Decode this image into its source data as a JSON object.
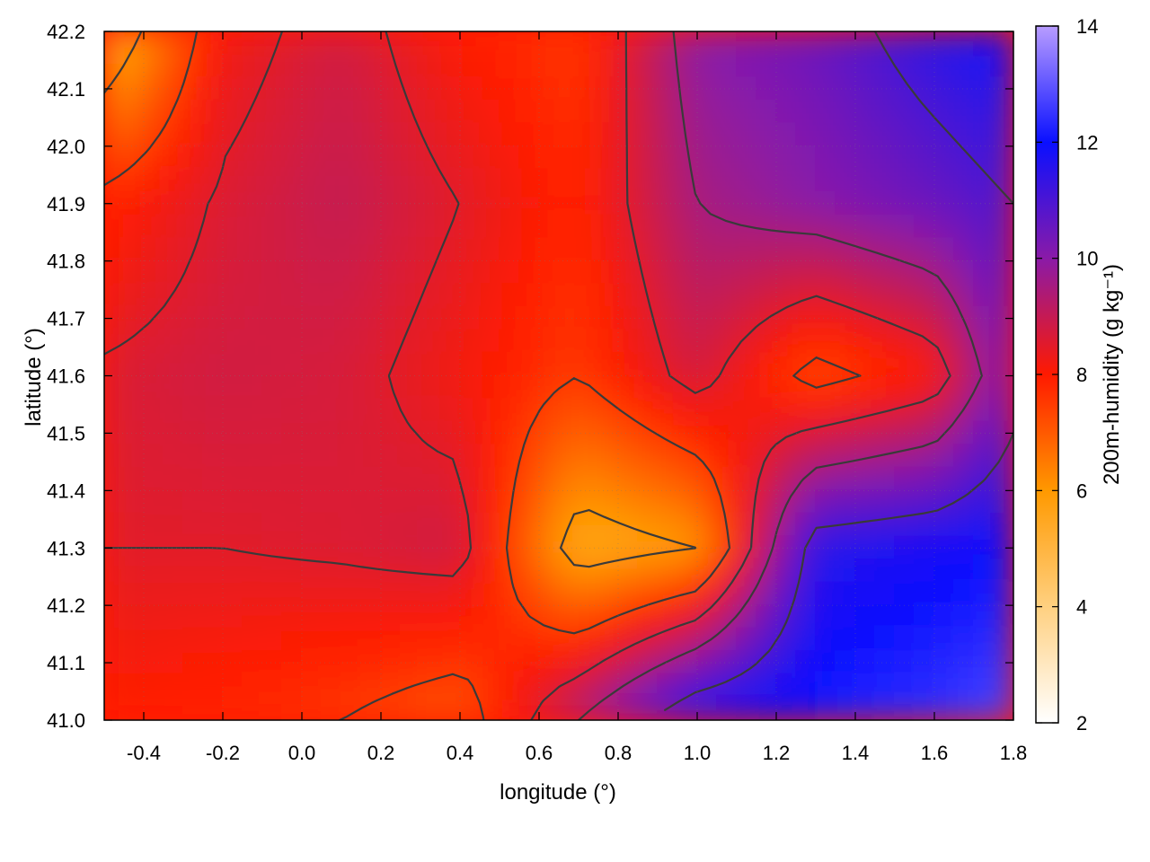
{
  "chart_data": {
    "type": "heatmap",
    "xlabel": "longitude (°)",
    "ylabel": "latitude (°)",
    "colorbar_label": "200m-humidity (g kg⁻¹)",
    "xlim": [
      -0.5,
      1.8
    ],
    "ylim": [
      41.0,
      42.2
    ],
    "zlim": [
      2,
      14
    ],
    "x_ticks": [
      -0.4,
      -0.2,
      0.0,
      0.2,
      0.4,
      0.6,
      0.8,
      1.0,
      1.2,
      1.4,
      1.6,
      1.8
    ],
    "x_tick_labels": [
      "-0.4",
      "-0.2",
      "0.0",
      "0.2",
      "0.4",
      "0.6",
      "0.8",
      "1.0",
      "1.2",
      "1.4",
      "1.6",
      "1.8"
    ],
    "y_ticks": [
      41.0,
      41.1,
      41.2,
      41.3,
      41.4,
      41.5,
      41.6,
      41.7,
      41.8,
      41.9,
      42.0,
      42.1,
      42.2
    ],
    "y_tick_labels": [
      "41.0",
      "41.1",
      "41.2",
      "41.3",
      "41.4",
      "41.5",
      "41.6",
      "41.7",
      "41.8",
      "41.9",
      "42.0",
      "42.1",
      "42.2"
    ],
    "colorbar_ticks": [
      2,
      4,
      6,
      8,
      10,
      12,
      14
    ],
    "colorbar_tick_labels": [
      "2",
      "4",
      "6",
      "8",
      "10",
      "12",
      "14"
    ],
    "colormap": [
      {
        "v": 2,
        "color": "#ffffff"
      },
      {
        "v": 4,
        "color": "#ffd080"
      },
      {
        "v": 6,
        "color": "#ff9900"
      },
      {
        "v": 8,
        "color": "#ff1a00"
      },
      {
        "v": 10,
        "color": "#8a1aa8"
      },
      {
        "v": 12,
        "color": "#0a10ff"
      },
      {
        "v": 14,
        "color": "#b89cff"
      }
    ],
    "grid": true,
    "contours": true,
    "contour_color": "#3a3a3a",
    "field_grid": {
      "lon": [
        -0.5,
        -0.2,
        0.1,
        0.4,
        0.7,
        1.0,
        1.3,
        1.6,
        1.8
      ],
      "lat": [
        42.2,
        41.9,
        41.6,
        41.3,
        41.0
      ],
      "humidity": [
        [
          5.0,
          8.2,
          8.8,
          8.0,
          7.5,
          10.0,
          10.5,
          11.5,
          12.0
        ],
        [
          7.8,
          8.6,
          9.0,
          8.5,
          7.8,
          9.5,
          10.0,
          10.5,
          11.0
        ],
        [
          8.6,
          8.8,
          8.7,
          8.2,
          7.5,
          8.8,
          7.2,
          8.0,
          10.5
        ],
        [
          8.5,
          8.5,
          8.6,
          8.8,
          5.5,
          6.0,
          11.5,
          11.8,
          12.0
        ],
        [
          8.0,
          7.8,
          7.5,
          7.0,
          9.5,
          12.0,
          12.2,
          12.5,
          12.8
        ]
      ]
    }
  }
}
